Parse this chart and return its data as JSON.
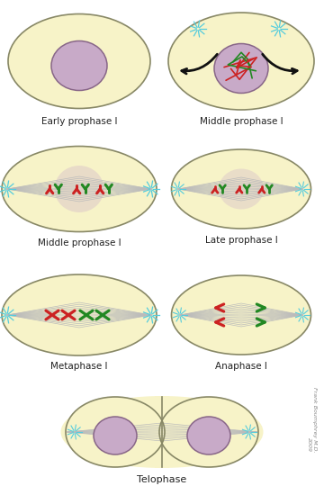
{
  "background": "#ffffff",
  "cell_fill": "#f7f3c8",
  "cell_edge": "#888866",
  "nucleus_fill": "#c8aac8",
  "nucleus_edge": "#886688",
  "spindle_color": "#aaaaaa",
  "aster_color": "#55ccdd",
  "red_chr": "#cc2222",
  "green_chr": "#228822",
  "labels": [
    "Early prophase I",
    "Middle prophase I",
    "Middle prophase I",
    "Late prophase I",
    "Metaphase I",
    "Anaphase I",
    "Telophase"
  ],
  "watermark": "Frank Boumphrey M.D.\n2009"
}
